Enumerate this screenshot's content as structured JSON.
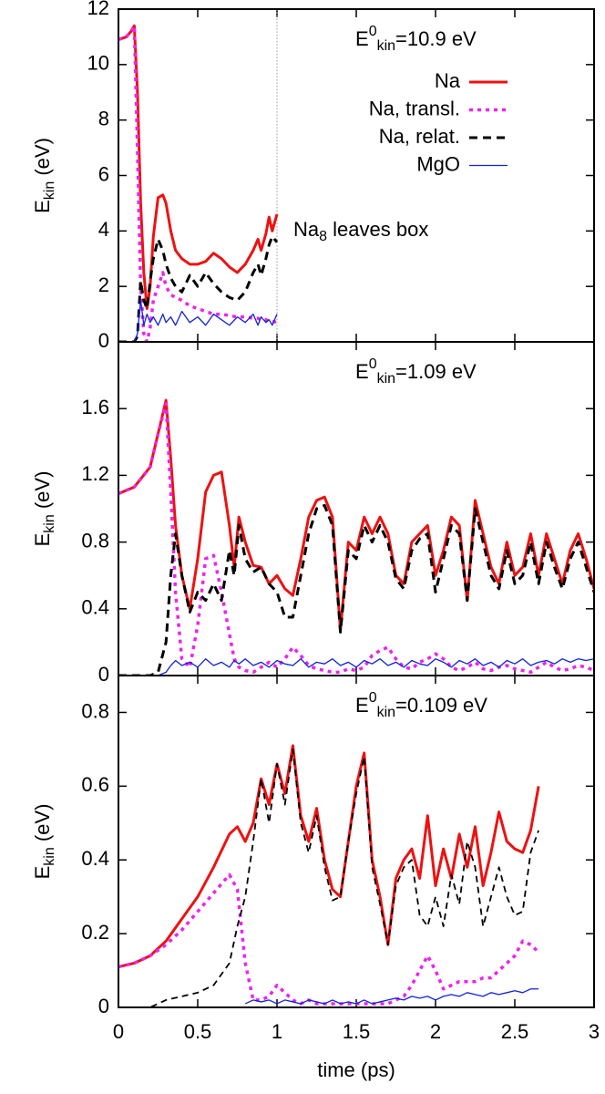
{
  "chart_data": [
    {
      "type": "line",
      "ylabel": [
        "E",
        "kin",
        " (eV)"
      ],
      "annotation": [
        "E",
        "0",
        "kin",
        "=10.9 eV"
      ],
      "note": [
        "Na",
        "8",
        " leaves box"
      ],
      "vline": 1,
      "xlim": [
        0,
        3
      ],
      "ylim": [
        0,
        12
      ],
      "yticks": [
        0,
        2,
        4,
        6,
        8,
        10,
        12
      ],
      "x": [
        0,
        0.05,
        0.08,
        0.1,
        0.12,
        0.14,
        0.16,
        0.18,
        0.2,
        0.22,
        0.25,
        0.28,
        0.3,
        0.33,
        0.36,
        0.4,
        0.45,
        0.5,
        0.55,
        0.6,
        0.65,
        0.7,
        0.75,
        0.8,
        0.85,
        0.88,
        0.9,
        0.93,
        0.95,
        0.97,
        1.0
      ],
      "series": [
        {
          "name": "Na",
          "color": "#ee1111",
          "style": "solid",
          "values": [
            10.9,
            11.0,
            11.2,
            11.4,
            9,
            5,
            2.5,
            1.2,
            2,
            3.8,
            5.2,
            5.3,
            5,
            4,
            3.3,
            3.0,
            2.8,
            2.8,
            2.9,
            3.2,
            3.0,
            2.7,
            2.5,
            2.8,
            3.3,
            3.7,
            3.3,
            3.9,
            4.5,
            4.0,
            4.6
          ]
        },
        {
          "name": "Na, transl.",
          "color": "#ee22ee",
          "style": "dotted",
          "values": [
            10.9,
            11.0,
            11.2,
            11.4,
            7,
            2,
            0.3,
            0,
            0.5,
            1.5,
            2.0,
            2.5,
            2.0,
            1.7,
            1.6,
            1.5,
            1.3,
            1.2,
            1.1,
            1.0,
            1.0,
            0.95,
            0.9,
            0.9,
            0.85,
            0.85,
            0.8,
            0.8,
            0.75,
            0.75,
            0.7
          ]
        },
        {
          "name": "Na, relat.",
          "color": "#000000",
          "style": "dashed",
          "values": [
            0,
            0,
            0,
            0,
            0.2,
            2.2,
            1.5,
            1.2,
            2.2,
            3.0,
            3.7,
            3.3,
            2.8,
            2.3,
            2.0,
            1.8,
            2.4,
            2.0,
            2.5,
            2.1,
            1.8,
            1.6,
            1.5,
            1.8,
            2.5,
            2.8,
            2.4,
            3.0,
            3.5,
            3.8,
            3.6
          ]
        },
        {
          "name": "MgO",
          "color": "#1122dd",
          "style": "thin",
          "values": [
            0,
            0,
            0,
            0,
            0.3,
            1.5,
            0.6,
            1.0,
            0.7,
            0.9,
            0.6,
            1.0,
            0.7,
            0.9,
            0.6,
            1.1,
            0.7,
            0.9,
            0.6,
            1.0,
            0.8,
            0.6,
            0.9,
            0.7,
            1.0,
            0.6,
            0.9,
            0.7,
            0.8,
            0.6,
            1.0
          ]
        }
      ]
    },
    {
      "type": "line",
      "ylabel": [
        "E",
        "kin",
        " (eV)"
      ],
      "annotation": [
        "E",
        "0",
        "kin",
        "=1.09 eV"
      ],
      "xlim": [
        0,
        3
      ],
      "ylim": [
        0,
        2
      ],
      "yticks": [
        0,
        0.4,
        0.8,
        1.2,
        1.6
      ],
      "x": [
        0,
        0.1,
        0.2,
        0.25,
        0.3,
        0.33,
        0.36,
        0.4,
        0.45,
        0.5,
        0.55,
        0.6,
        0.65,
        0.7,
        0.73,
        0.76,
        0.8,
        0.85,
        0.9,
        0.95,
        1.0,
        1.05,
        1.1,
        1.15,
        1.2,
        1.25,
        1.3,
        1.35,
        1.4,
        1.45,
        1.5,
        1.55,
        1.6,
        1.65,
        1.7,
        1.75,
        1.8,
        1.85,
        1.9,
        1.95,
        2.0,
        2.05,
        2.1,
        2.15,
        2.2,
        2.25,
        2.3,
        2.35,
        2.4,
        2.45,
        2.5,
        2.55,
        2.6,
        2.65,
        2.7,
        2.75,
        2.8,
        2.85,
        2.9,
        2.95,
        3.0
      ],
      "series": [
        {
          "color": "#ee1111",
          "style": "solid",
          "values": [
            1.09,
            1.13,
            1.25,
            1.45,
            1.65,
            1.3,
            0.9,
            0.6,
            0.4,
            0.7,
            1.1,
            1.2,
            1.22,
            0.9,
            0.65,
            0.95,
            0.8,
            0.66,
            0.65,
            0.55,
            0.6,
            0.52,
            0.48,
            0.7,
            0.95,
            1.05,
            1.07,
            0.95,
            0.27,
            0.8,
            0.75,
            0.95,
            0.85,
            0.95,
            0.85,
            0.6,
            0.55,
            0.8,
            0.85,
            0.9,
            0.6,
            0.75,
            0.95,
            0.9,
            0.45,
            1.05,
            0.85,
            0.65,
            0.55,
            0.8,
            0.6,
            0.65,
            0.85,
            0.6,
            0.85,
            0.7,
            0.55,
            0.75,
            0.85,
            0.7,
            0.52
          ]
        },
        {
          "color": "#ee22ee",
          "style": "dotted",
          "values": [
            1.09,
            1.13,
            1.25,
            1.45,
            1.63,
            1.1,
            0.5,
            0.1,
            0.05,
            0.3,
            0.7,
            0.72,
            0.5,
            0.25,
            0.1,
            0.05,
            0.03,
            0.02,
            0.05,
            0.08,
            0.05,
            0.1,
            0.17,
            0.12,
            0.06,
            0.04,
            0.03,
            0.02,
            0.02,
            0.04,
            0.03,
            0.05,
            0.12,
            0.15,
            0.17,
            0.1,
            0.05,
            0.04,
            0.08,
            0.1,
            0.13,
            0.1,
            0.05,
            0.03,
            0.05,
            0.08,
            0.04,
            0.03,
            0.05,
            0.06,
            0.04,
            0.03,
            0.02,
            0.05,
            0.08,
            0.05,
            0.03,
            0.04,
            0.06,
            0.05,
            0.03
          ]
        },
        {
          "color": "#000000",
          "style": "dashed",
          "values": [
            0,
            0,
            0,
            0.02,
            0.2,
            0.6,
            0.85,
            0.6,
            0.38,
            0.5,
            0.45,
            0.55,
            0.45,
            0.75,
            0.6,
            0.9,
            0.7,
            0.62,
            0.65,
            0.55,
            0.5,
            0.35,
            0.35,
            0.6,
            0.85,
            1.0,
            1.02,
            0.9,
            0.26,
            0.75,
            0.7,
            0.9,
            0.8,
            0.9,
            0.8,
            0.58,
            0.52,
            0.75,
            0.82,
            0.85,
            0.5,
            0.7,
            0.9,
            0.85,
            0.45,
            1.0,
            0.8,
            0.6,
            0.52,
            0.75,
            0.55,
            0.6,
            0.8,
            0.55,
            0.8,
            0.65,
            0.52,
            0.7,
            0.8,
            0.65,
            0.5
          ]
        },
        {
          "color": "#1122dd",
          "style": "thin",
          "values": [
            0,
            0,
            0,
            0,
            0.02,
            0.06,
            0.09,
            0.06,
            0.08,
            0.05,
            0.1,
            0.06,
            0.08,
            0.05,
            0.09,
            0.07,
            0.1,
            0.06,
            0.08,
            0.05,
            0.09,
            0.07,
            0.06,
            0.1,
            0.05,
            0.08,
            0.07,
            0.1,
            0.06,
            0.08,
            0.05,
            0.09,
            0.07,
            0.1,
            0.06,
            0.08,
            0.05,
            0.09,
            0.07,
            0.06,
            0.1,
            0.08,
            0.05,
            0.09,
            0.07,
            0.1,
            0.06,
            0.08,
            0.05,
            0.09,
            0.07,
            0.1,
            0.06,
            0.08,
            0.09,
            0.07,
            0.1,
            0.08,
            0.1,
            0.09,
            0.1
          ]
        }
      ]
    },
    {
      "type": "line",
      "ylabel": [
        "E",
        "kin",
        " (eV)"
      ],
      "annotation": [
        "E",
        "0",
        "kin",
        "=0.109 eV"
      ],
      "xlabel": "time (ps)",
      "xlim": [
        0,
        3
      ],
      "xticks": [
        0,
        0.5,
        1,
        1.5,
        2,
        2.5,
        3
      ],
      "ylim": [
        0,
        0.9
      ],
      "yticks": [
        0,
        0.2,
        0.4,
        0.6,
        0.8
      ],
      "x": [
        0,
        0.1,
        0.2,
        0.3,
        0.4,
        0.5,
        0.6,
        0.7,
        0.75,
        0.8,
        0.85,
        0.9,
        0.95,
        1.0,
        1.05,
        1.1,
        1.15,
        1.2,
        1.25,
        1.3,
        1.35,
        1.4,
        1.45,
        1.5,
        1.55,
        1.6,
        1.65,
        1.7,
        1.75,
        1.8,
        1.85,
        1.9,
        1.95,
        2.0,
        2.05,
        2.1,
        2.15,
        2.2,
        2.25,
        2.3,
        2.35,
        2.4,
        2.45,
        2.5,
        2.55,
        2.6,
        2.65
      ],
      "series": [
        {
          "color": "#ee1111",
          "style": "solid",
          "values": [
            0.11,
            0.12,
            0.14,
            0.18,
            0.24,
            0.3,
            0.38,
            0.47,
            0.49,
            0.45,
            0.5,
            0.62,
            0.55,
            0.66,
            0.58,
            0.71,
            0.52,
            0.45,
            0.54,
            0.4,
            0.32,
            0.3,
            0.45,
            0.6,
            0.69,
            0.4,
            0.3,
            0.17,
            0.35,
            0.4,
            0.43,
            0.35,
            0.52,
            0.33,
            0.43,
            0.35,
            0.47,
            0.38,
            0.49,
            0.33,
            0.42,
            0.53,
            0.45,
            0.43,
            0.42,
            0.48,
            0.6
          ]
        },
        {
          "color": "#ee22ee",
          "style": "dotted",
          "values": [
            0.11,
            0.12,
            0.14,
            0.17,
            0.21,
            0.26,
            0.31,
            0.36,
            0.32,
            0.12,
            0.02,
            0.02,
            0.03,
            0.06,
            0.04,
            0.02,
            0.01,
            0.02,
            0.01,
            0.01,
            0.01,
            0.01,
            0.01,
            0.01,
            0.01,
            0.01,
            0.01,
            0.01,
            0.02,
            0.03,
            0.06,
            0.1,
            0.14,
            0.1,
            0.05,
            0.06,
            0.07,
            0.07,
            0.07,
            0.08,
            0.08,
            0.1,
            0.12,
            0.14,
            0.18,
            0.17,
            0.15
          ]
        },
        {
          "color": "#000000",
          "style": "thin-dashed",
          "values": [
            0,
            0,
            0,
            0.02,
            0.03,
            0.04,
            0.06,
            0.12,
            0.22,
            0.3,
            0.45,
            0.62,
            0.5,
            0.66,
            0.55,
            0.7,
            0.5,
            0.42,
            0.52,
            0.38,
            0.29,
            0.3,
            0.45,
            0.58,
            0.68,
            0.38,
            0.28,
            0.17,
            0.33,
            0.38,
            0.4,
            0.25,
            0.22,
            0.3,
            0.22,
            0.36,
            0.28,
            0.45,
            0.38,
            0.22,
            0.3,
            0.38,
            0.3,
            0.25,
            0.26,
            0.42,
            0.48
          ]
        },
        {
          "color": "#1122dd",
          "style": "thin",
          "values": [
            null,
            null,
            null,
            null,
            null,
            null,
            null,
            null,
            null,
            0.01,
            0.02,
            0.015,
            0.02,
            0.01,
            0.02,
            0.015,
            0.01,
            0.02,
            0.015,
            0.01,
            0.02,
            0.01,
            0.015,
            0.01,
            0.02,
            0.01,
            0.015,
            0.02,
            0.025,
            0.02,
            0.03,
            0.025,
            0.03,
            0.02,
            0.03,
            0.035,
            0.03,
            0.04,
            0.035,
            0.03,
            0.04,
            0.035,
            0.04,
            0.045,
            0.04,
            0.05,
            0.05
          ]
        }
      ]
    }
  ]
}
